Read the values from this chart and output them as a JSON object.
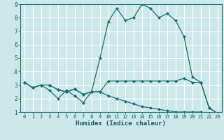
{
  "title": "",
  "xlabel": "Humidex (Indice chaleur)",
  "bg_color": "#cce8ea",
  "grid_color": "#ffffff",
  "line_color": "#1a7070",
  "xlim": [
    -0.5,
    23.5
  ],
  "ylim": [
    1,
    9
  ],
  "xticks": [
    0,
    1,
    2,
    3,
    4,
    5,
    6,
    7,
    8,
    9,
    10,
    11,
    12,
    13,
    14,
    15,
    16,
    17,
    18,
    19,
    20,
    21,
    22,
    23
  ],
  "yticks": [
    1,
    2,
    3,
    4,
    5,
    6,
    7,
    8,
    9
  ],
  "line1_x": [
    0,
    1,
    2,
    3,
    4,
    5,
    6,
    7,
    8,
    9,
    10,
    11,
    12,
    13,
    14,
    15,
    16,
    17,
    18,
    19,
    20,
    21,
    22,
    23
  ],
  "line1_y": [
    3.2,
    2.8,
    3.0,
    3.0,
    2.65,
    2.5,
    2.7,
    2.3,
    2.5,
    2.5,
    3.3,
    3.3,
    3.3,
    3.3,
    3.3,
    3.3,
    3.3,
    3.3,
    3.3,
    3.5,
    3.2,
    3.2,
    1.3,
    0.9
  ],
  "line2_x": [
    0,
    1,
    2,
    3,
    4,
    5,
    6,
    7,
    8,
    9,
    10,
    11,
    12,
    13,
    14,
    15,
    16,
    17,
    18,
    19,
    20,
    21,
    22,
    23
  ],
  "line2_y": [
    3.2,
    2.8,
    3.0,
    2.6,
    2.0,
    2.6,
    2.2,
    1.7,
    2.5,
    5.0,
    7.7,
    8.7,
    7.8,
    8.0,
    9.0,
    8.7,
    8.0,
    8.3,
    7.8,
    6.6,
    3.6,
    3.2,
    1.3,
    0.9
  ],
  "line3_x": [
    0,
    1,
    2,
    3,
    4,
    5,
    6,
    7,
    8,
    9,
    10,
    11,
    12,
    13,
    14,
    15,
    16,
    17,
    18,
    19,
    20,
    21,
    22,
    23
  ],
  "line3_y": [
    3.2,
    2.8,
    3.0,
    3.0,
    2.65,
    2.5,
    2.7,
    2.3,
    2.5,
    2.5,
    2.2,
    2.0,
    1.8,
    1.6,
    1.4,
    1.3,
    1.2,
    1.1,
    1.0,
    1.0,
    1.0,
    1.0,
    0.9,
    0.9
  ]
}
